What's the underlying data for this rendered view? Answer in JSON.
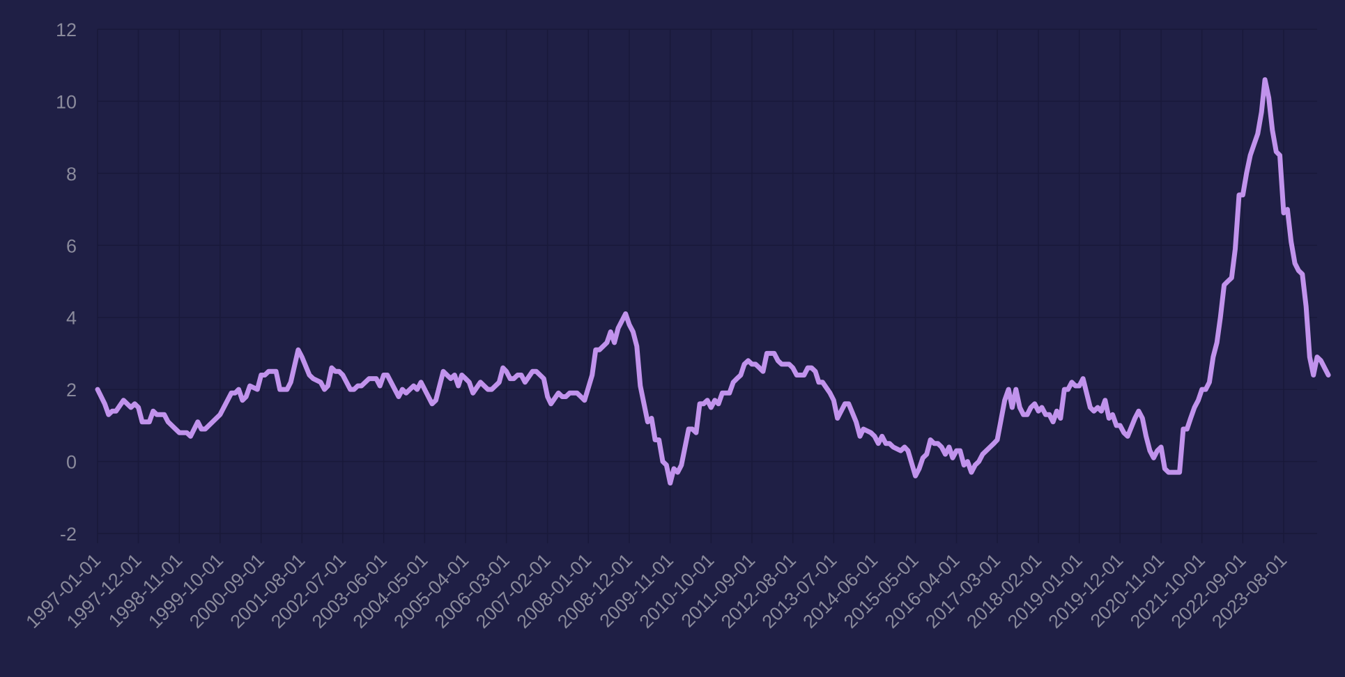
{
  "colors": {
    "background": "#1f1f45",
    "grid": "#19193a",
    "tick_label": "#8b8b9c",
    "line": "#c193ec"
  },
  "chart_data": {
    "type": "line",
    "title": "",
    "xlabel": "",
    "ylabel": "",
    "x_range": [
      "1997-01-01",
      "2024-05-01"
    ],
    "ylim": [
      -2,
      12
    ],
    "y_ticks": [
      -2,
      0,
      2,
      4,
      6,
      8,
      10,
      12
    ],
    "x_tick_labels": [
      "1997-01-01",
      "1997-12-01",
      "1998-11-01",
      "1999-10-01",
      "2000-09-01",
      "2001-08-01",
      "2002-07-01",
      "2003-06-01",
      "2004-05-01",
      "2005-04-01",
      "2006-03-01",
      "2007-02-01",
      "2008-01-01",
      "2008-12-01",
      "2009-11-01",
      "2010-10-01",
      "2011-09-01",
      "2012-08-01",
      "2013-07-01",
      "2014-06-01",
      "2015-05-01",
      "2016-04-01",
      "2017-03-01",
      "2018-02-01",
      "2019-01-01",
      "2019-12-01",
      "2020-11-01",
      "2021-10-01",
      "2022-09-01",
      "2023-08-01"
    ],
    "grid": true,
    "legend": "none",
    "series": [
      {
        "color": "#c193ec",
        "points": [
          [
            "1997-01-01",
            2.0
          ],
          [
            "1997-03-01",
            1.6
          ],
          [
            "1997-04-01",
            1.3
          ],
          [
            "1997-05-01",
            1.4
          ],
          [
            "1997-06-01",
            1.4
          ],
          [
            "1997-08-01",
            1.7
          ],
          [
            "1997-10-01",
            1.5
          ],
          [
            "1997-11-01",
            1.6
          ],
          [
            "1997-12-01",
            1.5
          ],
          [
            "1998-01-01",
            1.1
          ],
          [
            "1998-03-01",
            1.1
          ],
          [
            "1998-04-01",
            1.4
          ],
          [
            "1998-05-01",
            1.3
          ],
          [
            "1998-07-01",
            1.3
          ],
          [
            "1998-08-01",
            1.1
          ],
          [
            "1998-11-01",
            0.8
          ],
          [
            "1999-01-01",
            0.8
          ],
          [
            "1999-02-01",
            0.7
          ],
          [
            "1999-04-01",
            1.1
          ],
          [
            "1999-05-01",
            0.9
          ],
          [
            "1999-06-01",
            0.9
          ],
          [
            "1999-10-01",
            1.3
          ],
          [
            "2000-01-01",
            1.9
          ],
          [
            "2000-02-01",
            1.9
          ],
          [
            "2000-03-01",
            2.0
          ],
          [
            "2000-04-01",
            1.7
          ],
          [
            "2000-05-01",
            1.8
          ],
          [
            "2000-06-01",
            2.1
          ],
          [
            "2000-08-01",
            2.0
          ],
          [
            "2000-09-01",
            2.4
          ],
          [
            "2000-10-01",
            2.4
          ],
          [
            "2000-11-01",
            2.5
          ],
          [
            "2001-01-01",
            2.5
          ],
          [
            "2001-02-01",
            2.0
          ],
          [
            "2001-04-01",
            2.0
          ],
          [
            "2001-05-01",
            2.2
          ],
          [
            "2001-07-01",
            3.1
          ],
          [
            "2001-08-01",
            2.9
          ],
          [
            "2001-10-01",
            2.4
          ],
          [
            "2001-11-01",
            2.3
          ],
          [
            "2002-01-01",
            2.2
          ],
          [
            "2002-02-01",
            2.0
          ],
          [
            "2002-03-01",
            2.1
          ],
          [
            "2002-04-01",
            2.6
          ],
          [
            "2002-05-01",
            2.5
          ],
          [
            "2002-06-01",
            2.5
          ],
          [
            "2002-07-01",
            2.4
          ],
          [
            "2002-09-01",
            2.0
          ],
          [
            "2002-10-01",
            2.0
          ],
          [
            "2002-11-01",
            2.1
          ],
          [
            "2002-12-01",
            2.1
          ],
          [
            "2003-02-01",
            2.3
          ],
          [
            "2003-04-01",
            2.3
          ],
          [
            "2003-05-01",
            2.1
          ],
          [
            "2003-06-01",
            2.4
          ],
          [
            "2003-07-01",
            2.4
          ],
          [
            "2003-10-01",
            1.8
          ],
          [
            "2003-11-01",
            2.0
          ],
          [
            "2003-12-01",
            1.9
          ],
          [
            "2004-01-01",
            2.0
          ],
          [
            "2004-02-01",
            2.1
          ],
          [
            "2004-03-01",
            2.0
          ],
          [
            "2004-04-01",
            2.2
          ],
          [
            "2004-07-01",
            1.6
          ],
          [
            "2004-08-01",
            1.7
          ],
          [
            "2004-10-01",
            2.5
          ],
          [
            "2004-12-01",
            2.3
          ],
          [
            "2005-01-01",
            2.4
          ],
          [
            "2005-02-01",
            2.1
          ],
          [
            "2005-03-01",
            2.4
          ],
          [
            "2005-04-01",
            2.3
          ],
          [
            "2005-05-01",
            2.2
          ],
          [
            "2005-06-01",
            1.9
          ],
          [
            "2005-08-01",
            2.2
          ],
          [
            "2005-10-01",
            2.0
          ],
          [
            "2005-11-01",
            2.0
          ],
          [
            "2006-01-01",
            2.2
          ],
          [
            "2006-02-01",
            2.6
          ],
          [
            "2006-03-01",
            2.5
          ],
          [
            "2006-04-01",
            2.3
          ],
          [
            "2006-05-01",
            2.3
          ],
          [
            "2006-06-01",
            2.4
          ],
          [
            "2006-07-01",
            2.4
          ],
          [
            "2006-08-01",
            2.2
          ],
          [
            "2006-10-01",
            2.5
          ],
          [
            "2006-11-01",
            2.5
          ],
          [
            "2007-01-01",
            2.3
          ],
          [
            "2007-02-01",
            1.8
          ],
          [
            "2007-03-01",
            1.6
          ],
          [
            "2007-05-01",
            1.9
          ],
          [
            "2007-06-01",
            1.8
          ],
          [
            "2007-07-01",
            1.8
          ],
          [
            "2007-08-01",
            1.9
          ],
          [
            "2007-10-01",
            1.9
          ],
          [
            "2007-11-01",
            1.8
          ],
          [
            "2007-12-01",
            1.7
          ],
          [
            "2008-02-01",
            2.4
          ],
          [
            "2008-03-01",
            3.1
          ],
          [
            "2008-04-01",
            3.1
          ],
          [
            "2008-06-01",
            3.3
          ],
          [
            "2008-07-01",
            3.6
          ],
          [
            "2008-08-01",
            3.3
          ],
          [
            "2008-09-01",
            3.7
          ],
          [
            "2008-11-01",
            4.1
          ],
          [
            "2008-12-01",
            3.8
          ],
          [
            "2009-01-01",
            3.6
          ],
          [
            "2009-02-01",
            3.2
          ],
          [
            "2009-03-01",
            2.1
          ],
          [
            "2009-05-01",
            1.1
          ],
          [
            "2009-06-01",
            1.2
          ],
          [
            "2009-07-01",
            0.6
          ],
          [
            "2009-08-01",
            0.6
          ],
          [
            "2009-09-01",
            0.0
          ],
          [
            "2009-10-01",
            -0.1
          ],
          [
            "2009-11-01",
            -0.6
          ],
          [
            "2009-12-01",
            -0.2
          ],
          [
            "2010-01-01",
            -0.3
          ],
          [
            "2010-02-01",
            -0.1
          ],
          [
            "2010-04-01",
            0.9
          ],
          [
            "2010-05-01",
            0.9
          ],
          [
            "2010-06-01",
            0.8
          ],
          [
            "2010-07-01",
            1.6
          ],
          [
            "2010-08-01",
            1.6
          ],
          [
            "2010-09-01",
            1.7
          ],
          [
            "2010-10-01",
            1.5
          ],
          [
            "2010-11-01",
            1.7
          ],
          [
            "2010-12-01",
            1.6
          ],
          [
            "2011-01-01",
            1.9
          ],
          [
            "2011-03-01",
            1.9
          ],
          [
            "2011-04-01",
            2.2
          ],
          [
            "2011-05-01",
            2.3
          ],
          [
            "2011-06-01",
            2.4
          ],
          [
            "2011-07-01",
            2.7
          ],
          [
            "2011-08-01",
            2.8
          ],
          [
            "2011-09-01",
            2.7
          ],
          [
            "2011-10-01",
            2.7
          ],
          [
            "2011-11-01",
            2.6
          ],
          [
            "2011-12-01",
            2.5
          ],
          [
            "2012-01-01",
            3.0
          ],
          [
            "2012-03-01",
            3.0
          ],
          [
            "2012-04-01",
            2.8
          ],
          [
            "2012-05-01",
            2.7
          ],
          [
            "2012-07-01",
            2.7
          ],
          [
            "2012-08-01",
            2.6
          ],
          [
            "2012-09-01",
            2.4
          ],
          [
            "2012-11-01",
            2.4
          ],
          [
            "2012-12-01",
            2.6
          ],
          [
            "2013-01-01",
            2.6
          ],
          [
            "2013-02-01",
            2.5
          ],
          [
            "2013-03-01",
            2.2
          ],
          [
            "2013-04-01",
            2.2
          ],
          [
            "2013-06-01",
            1.9
          ],
          [
            "2013-07-01",
            1.7
          ],
          [
            "2013-08-01",
            1.2
          ],
          [
            "2013-10-01",
            1.6
          ],
          [
            "2013-11-01",
            1.6
          ],
          [
            "2014-01-01",
            1.1
          ],
          [
            "2014-02-01",
            0.7
          ],
          [
            "2014-03-01",
            0.9
          ],
          [
            "2014-05-01",
            0.8
          ],
          [
            "2014-06-01",
            0.7
          ],
          [
            "2014-07-01",
            0.5
          ],
          [
            "2014-08-01",
            0.7
          ],
          [
            "2014-09-01",
            0.5
          ],
          [
            "2014-10-01",
            0.5
          ],
          [
            "2014-11-01",
            0.4
          ],
          [
            "2015-01-01",
            0.3
          ],
          [
            "2015-02-01",
            0.4
          ],
          [
            "2015-03-01",
            0.3
          ],
          [
            "2015-05-01",
            -0.4
          ],
          [
            "2015-06-01",
            -0.2
          ],
          [
            "2015-07-01",
            0.1
          ],
          [
            "2015-08-01",
            0.2
          ],
          [
            "2015-09-01",
            0.6
          ],
          [
            "2015-10-01",
            0.5
          ],
          [
            "2015-11-01",
            0.5
          ],
          [
            "2015-12-01",
            0.4
          ],
          [
            "2016-01-01",
            0.2
          ],
          [
            "2016-02-01",
            0.4
          ],
          [
            "2016-03-01",
            0.1
          ],
          [
            "2016-04-01",
            0.3
          ],
          [
            "2016-05-01",
            0.3
          ],
          [
            "2016-06-01",
            -0.1
          ],
          [
            "2016-07-01",
            0.0
          ],
          [
            "2016-08-01",
            -0.3
          ],
          [
            "2016-09-01",
            -0.1
          ],
          [
            "2016-10-01",
            0.0
          ],
          [
            "2016-11-01",
            0.2
          ],
          [
            "2017-01-01",
            0.4
          ],
          [
            "2017-02-01",
            0.5
          ],
          [
            "2017-03-01",
            0.6
          ],
          [
            "2017-05-01",
            1.7
          ],
          [
            "2017-06-01",
            2.0
          ],
          [
            "2017-07-01",
            1.5
          ],
          [
            "2017-08-01",
            2.0
          ],
          [
            "2017-09-01",
            1.5
          ],
          [
            "2017-10-01",
            1.3
          ],
          [
            "2017-11-01",
            1.3
          ],
          [
            "2017-12-01",
            1.5
          ],
          [
            "2018-01-01",
            1.6
          ],
          [
            "2018-02-01",
            1.4
          ],
          [
            "2018-03-01",
            1.5
          ],
          [
            "2018-04-01",
            1.3
          ],
          [
            "2018-05-01",
            1.3
          ],
          [
            "2018-06-01",
            1.1
          ],
          [
            "2018-07-01",
            1.4
          ],
          [
            "2018-08-01",
            1.2
          ],
          [
            "2018-09-01",
            2.0
          ],
          [
            "2018-10-01",
            2.0
          ],
          [
            "2018-11-01",
            2.2
          ],
          [
            "2018-12-01",
            2.1
          ],
          [
            "2019-01-01",
            2.1
          ],
          [
            "2019-02-01",
            2.3
          ],
          [
            "2019-04-01",
            1.5
          ],
          [
            "2019-05-01",
            1.4
          ],
          [
            "2019-06-01",
            1.5
          ],
          [
            "2019-07-01",
            1.4
          ],
          [
            "2019-08-01",
            1.7
          ],
          [
            "2019-09-01",
            1.2
          ],
          [
            "2019-10-01",
            1.3
          ],
          [
            "2019-11-01",
            1.0
          ],
          [
            "2019-12-01",
            1.0
          ],
          [
            "2020-01-01",
            0.8
          ],
          [
            "2020-02-01",
            0.7
          ],
          [
            "2020-04-01",
            1.2
          ],
          [
            "2020-05-01",
            1.4
          ],
          [
            "2020-06-01",
            1.2
          ],
          [
            "2020-07-01",
            0.7
          ],
          [
            "2020-08-01",
            0.3
          ],
          [
            "2020-09-01",
            0.1
          ],
          [
            "2020-10-01",
            0.3
          ],
          [
            "2020-11-01",
            0.4
          ],
          [
            "2020-12-01",
            -0.2
          ],
          [
            "2021-01-01",
            -0.3
          ],
          [
            "2021-03-01",
            -0.3
          ],
          [
            "2021-04-01",
            -0.3
          ],
          [
            "2021-05-01",
            0.9
          ],
          [
            "2021-06-01",
            0.9
          ],
          [
            "2021-07-01",
            1.2
          ],
          [
            "2021-08-01",
            1.5
          ],
          [
            "2021-09-01",
            1.7
          ],
          [
            "2021-10-01",
            2.0
          ],
          [
            "2021-11-01",
            2.0
          ],
          [
            "2021-12-01",
            2.2
          ],
          [
            "2022-01-01",
            2.9
          ],
          [
            "2022-02-01",
            3.3
          ],
          [
            "2022-03-01",
            4.0
          ],
          [
            "2022-04-01",
            4.9
          ],
          [
            "2022-05-01",
            5.0
          ],
          [
            "2022-06-01",
            5.1
          ],
          [
            "2022-07-01",
            5.9
          ],
          [
            "2022-08-01",
            7.4
          ],
          [
            "2022-09-01",
            7.4
          ],
          [
            "2022-10-01",
            8.0
          ],
          [
            "2022-11-01",
            8.5
          ],
          [
            "2022-12-01",
            8.8
          ],
          [
            "2023-01-01",
            9.1
          ],
          [
            "2023-02-01",
            9.7
          ],
          [
            "2023-03-01",
            10.6
          ],
          [
            "2023-04-01",
            10.1
          ],
          [
            "2023-05-01",
            9.2
          ],
          [
            "2023-06-01",
            8.6
          ],
          [
            "2023-07-01",
            8.5
          ],
          [
            "2023-08-01",
            6.9
          ],
          [
            "2023-09-01",
            7.0
          ],
          [
            "2023-10-01",
            6.1
          ],
          [
            "2023-11-01",
            5.5
          ],
          [
            "2023-12-01",
            5.3
          ],
          [
            "2024-01-01",
            5.2
          ],
          [
            "2024-02-01",
            4.3
          ],
          [
            "2024-03-01",
            2.9
          ],
          [
            "2024-04-01",
            2.4
          ],
          [
            "2024-05-01",
            2.9
          ],
          [
            "2024-06-01",
            2.8
          ],
          [
            "2024-07-01",
            2.6
          ],
          [
            "2024-08-01",
            2.4
          ]
        ]
      }
    ]
  }
}
